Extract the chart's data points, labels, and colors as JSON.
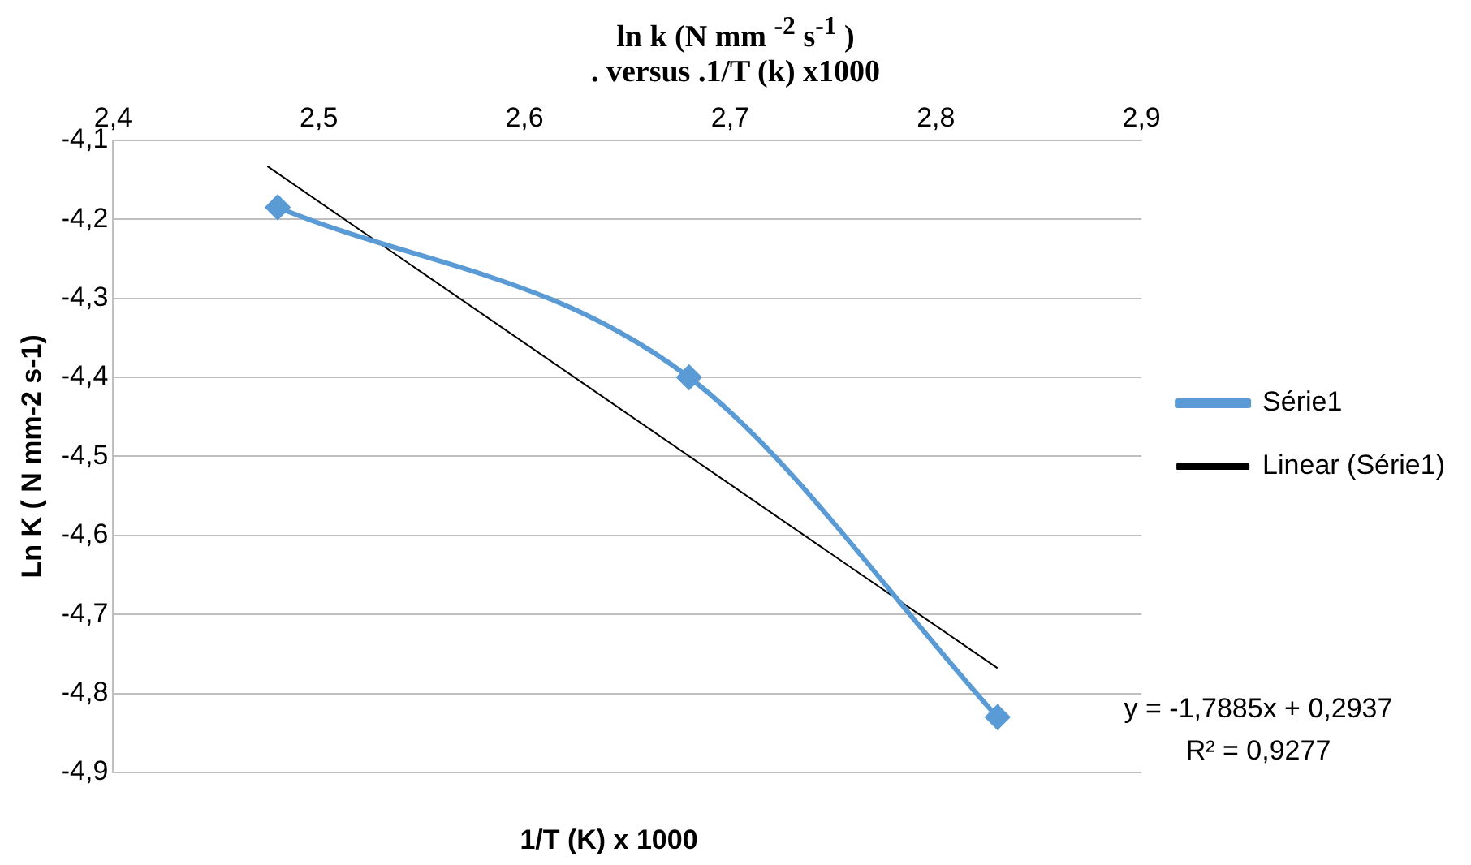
{
  "chart_data": {
    "type": "line",
    "title": "ln k (N mm $^{-2}$ s$^{-1}$ )",
    "subtitle": ". versus .1/T (k) x1000",
    "xlabel": "1/T (K) x 1000",
    "ylabel": "Ln K ( N mm-2 s-1)",
    "xlim": [
      2.4,
      2.9
    ],
    "xticks": [
      {
        "value": 2.4,
        "label": "2,4"
      },
      {
        "value": 2.5,
        "label": "2,5"
      },
      {
        "value": 2.6,
        "label": "2,6"
      },
      {
        "value": 2.7,
        "label": "2,7"
      },
      {
        "value": 2.8,
        "label": "2,8"
      },
      {
        "value": 2.9,
        "label": "2,9"
      }
    ],
    "ylim": [
      -4.9,
      -4.1
    ],
    "yticks": [
      {
        "value": -4.1,
        "label": "-4,1"
      },
      {
        "value": -4.2,
        "label": "-4,2"
      },
      {
        "value": -4.3,
        "label": "-4,3"
      },
      {
        "value": -4.4,
        "label": "-4,4"
      },
      {
        "value": -4.5,
        "label": "-4,5"
      },
      {
        "value": -4.6,
        "label": "-4,6"
      },
      {
        "value": -4.7,
        "label": "-4,7"
      },
      {
        "value": -4.8,
        "label": "-4,8"
      },
      {
        "value": -4.9,
        "label": "-4,9"
      }
    ],
    "grid": "y",
    "legend": "right",
    "series": [
      {
        "name": "Série1",
        "color": "#5b9bd5",
        "marker": "diamond",
        "line_style": "solid",
        "x": [
          2.48,
          2.68,
          2.83
        ],
        "values": [
          -4.185,
          -4.4,
          -4.83
        ]
      },
      {
        "name": "Linear (Série1)",
        "color": "#000000",
        "marker": "none",
        "line_style": "solid",
        "x": [
          2.475,
          2.83
        ],
        "values": [
          -4.133,
          -4.768
        ]
      }
    ],
    "annotations": [
      "y = -1,7885x + 0,2937",
      "R² = 0,9277"
    ]
  }
}
